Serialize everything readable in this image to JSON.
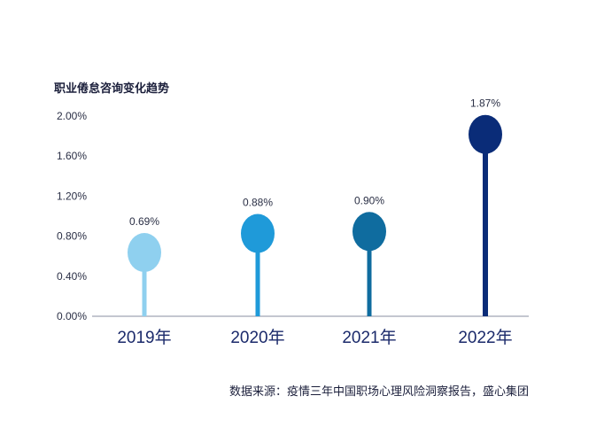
{
  "chart_data": {
    "type": "lollipop",
    "title": "职业倦怠咨询变化趋势",
    "source": "数据来源：疫情三年中国职场心理风险洞察报告，盛心集团",
    "categories": [
      "2019年",
      "2020年",
      "2021年",
      "2022年"
    ],
    "values": [
      0.69,
      0.88,
      0.9,
      1.87
    ],
    "value_labels": [
      "0.69%",
      "0.88%",
      "0.90%",
      "1.87%"
    ],
    "y_ticks": [
      "0.00%",
      "0.40%",
      "0.80%",
      "1.20%",
      "1.60%",
      "2.00%"
    ],
    "ylim": [
      0,
      2.0
    ],
    "grid": false,
    "colors": [
      "#8fd0ef",
      "#1f9ad9",
      "#0f6c9f",
      "#0a2c78"
    ],
    "axis_color": "#8a8fa0"
  }
}
